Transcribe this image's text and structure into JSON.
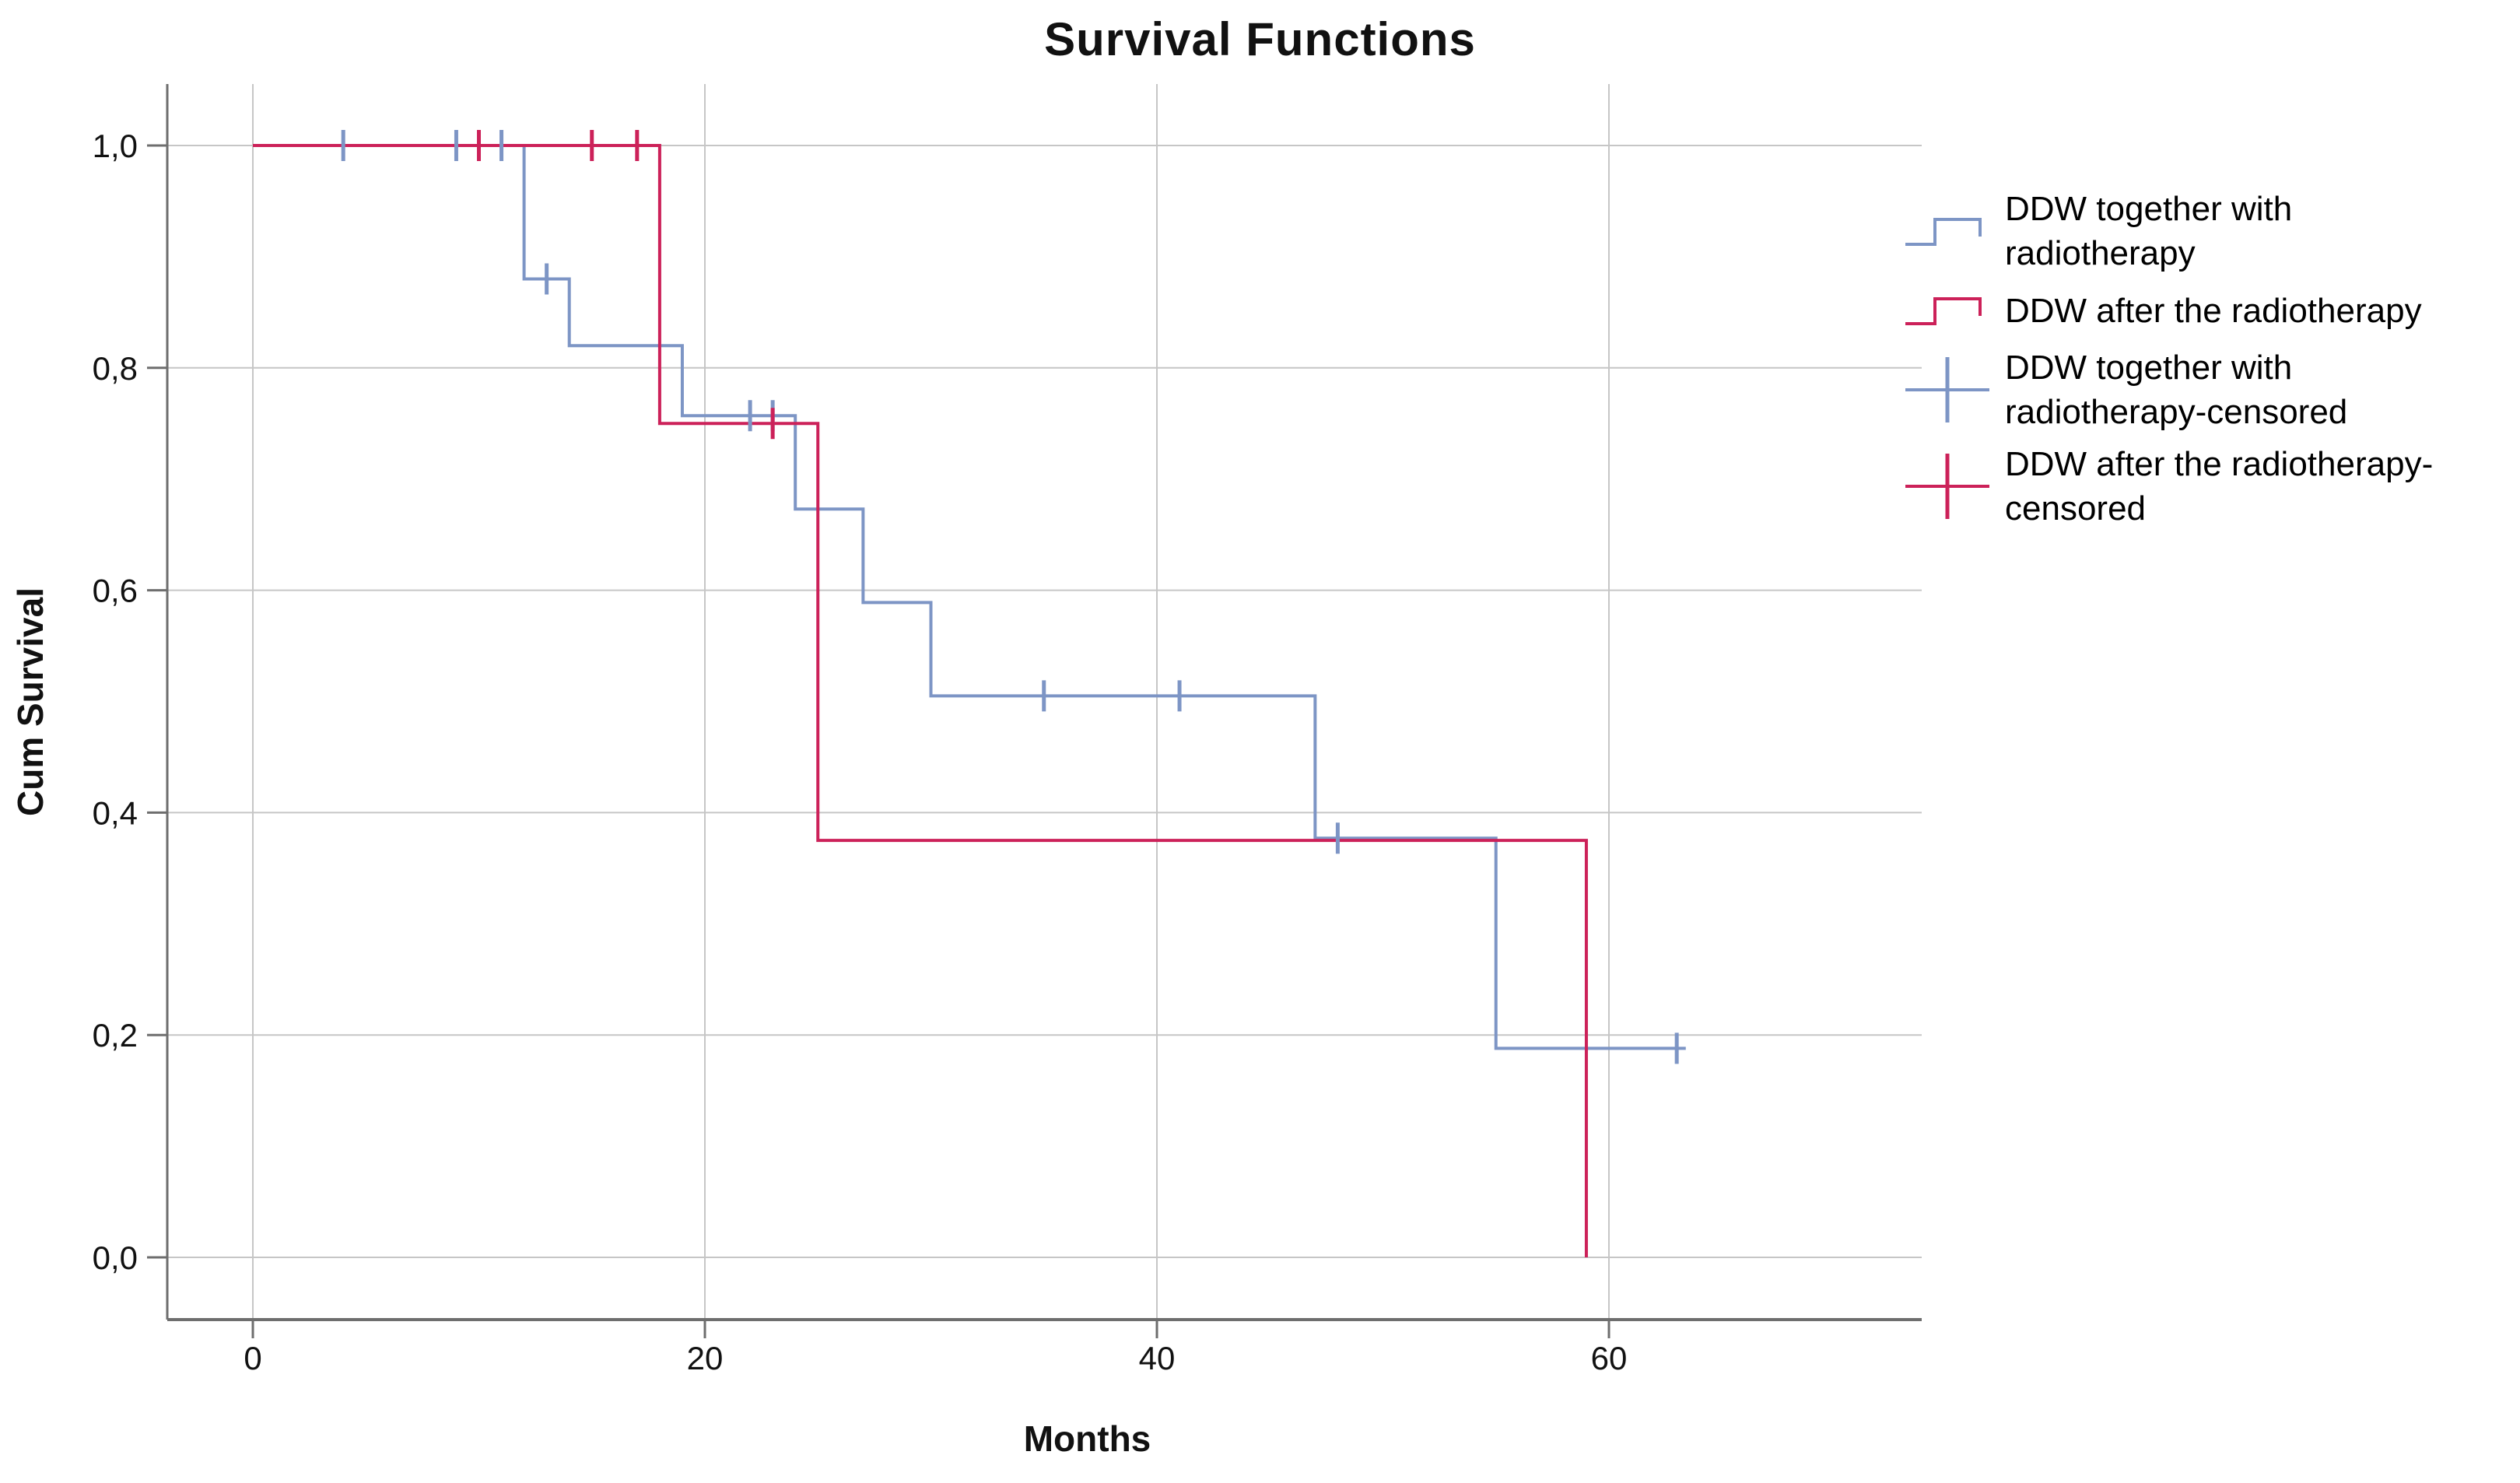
{
  "chart_data": {
    "type": "line",
    "subtype": "kaplan-meier-step",
    "title": "Survival Functions",
    "xlabel": "Months",
    "ylabel": "Cum Survival",
    "xlim": [
      -3.8,
      73.8
    ],
    "ylim": [
      -0.056,
      1.055
    ],
    "grid": true,
    "legend_position": "right",
    "decimal_separator": ",",
    "x_ticks": [
      0,
      20,
      40,
      60
    ],
    "x_tick_labels": [
      "0",
      "20",
      "40",
      "60"
    ],
    "y_ticks": [
      0.0,
      0.2,
      0.4,
      0.6,
      0.8,
      1.0
    ],
    "y_tick_labels": [
      "0,0",
      "0,2",
      "0,4",
      "0,6",
      "0,8",
      "1,0"
    ],
    "colors": {
      "series_blue": "#7d95c5",
      "series_red": "#cc2159",
      "gridline": "#c6c6c6",
      "axis": "#6e6e6e",
      "text": "#111111"
    },
    "series": [
      {
        "name": "DDW together with radiotherapy",
        "color": "#7d95c5",
        "steps": [
          [
            0,
            1.0
          ],
          [
            12,
            0.88
          ],
          [
            14,
            0.82
          ],
          [
            19,
            0.757
          ],
          [
            24,
            0.673
          ],
          [
            27,
            0.589
          ],
          [
            30,
            0.505
          ],
          [
            47,
            0.377
          ],
          [
            55,
            0.188
          ]
        ],
        "end_month": 63.4,
        "censored": [
          [
            4,
            1.0
          ],
          [
            9,
            1.0
          ],
          [
            11,
            1.0
          ],
          [
            13,
            0.88
          ],
          [
            22,
            0.757
          ],
          [
            23,
            0.757
          ],
          [
            35,
            0.505
          ],
          [
            41,
            0.505
          ],
          [
            48,
            0.377
          ],
          [
            63,
            0.188
          ]
        ]
      },
      {
        "name": "DDW after the radiotherapy",
        "color": "#cc2159",
        "steps": [
          [
            0,
            1.0
          ],
          [
            18,
            0.75
          ],
          [
            25,
            0.375
          ],
          [
            59,
            0.0
          ]
        ],
        "end_month": 59,
        "censored": [
          [
            10,
            1.0
          ],
          [
            15,
            1.0
          ],
          [
            17,
            1.0
          ],
          [
            23,
            0.75
          ]
        ]
      }
    ],
    "legend": [
      {
        "label": "DDW together with\nradiotherapy",
        "symbol": "step",
        "color": "#7d95c5"
      },
      {
        "label": "DDW after the radiotherapy",
        "symbol": "step",
        "color": "#cc2159"
      },
      {
        "label": "DDW together with\nradiotherapy-censored",
        "symbol": "censor",
        "color": "#7d95c5"
      },
      {
        "label": "DDW after the radiotherapy-\ncensored",
        "symbol": "censor",
        "color": "#cc2159"
      }
    ]
  }
}
